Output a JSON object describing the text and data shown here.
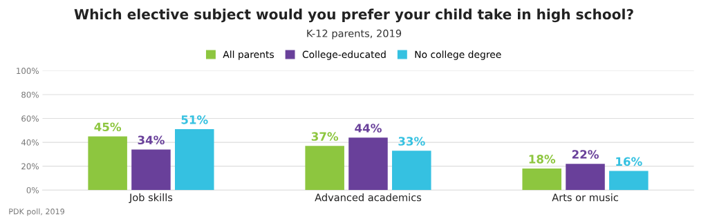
{
  "chart_data": {
    "type": "bar",
    "title": "Which elective subject would you prefer your child take in high school?",
    "subtitle": "K-12 parents, 2019",
    "categories": [
      "Job skills",
      "Advanced academics",
      "Arts or music"
    ],
    "series": [
      {
        "name": "All parents",
        "color": "#8dc63f",
        "values": [
          45,
          37,
          18
        ],
        "value_labels": [
          "45%",
          "37%",
          "18%"
        ]
      },
      {
        "name": "College-educated",
        "color": "#69409a",
        "values": [
          34,
          44,
          22
        ],
        "value_labels": [
          "34%",
          "44%",
          "22%"
        ]
      },
      {
        "name": "No college degree",
        "color": "#35c1e1",
        "values": [
          51,
          33,
          16
        ],
        "value_labels": [
          "51%",
          "33%",
          "16%"
        ]
      }
    ],
    "ylim": [
      0,
      100
    ],
    "yticks": [
      {
        "value": 0,
        "label": "0%"
      },
      {
        "value": 20,
        "label": "20%"
      },
      {
        "value": 40,
        "label": "40%"
      },
      {
        "value": 60,
        "label": "60%"
      },
      {
        "value": 80,
        "label": "80%"
      },
      {
        "value": 100,
        "label": "100%"
      }
    ],
    "grid": "y",
    "legend": "top",
    "annotations": [
      "PDK poll, 2019"
    ]
  }
}
